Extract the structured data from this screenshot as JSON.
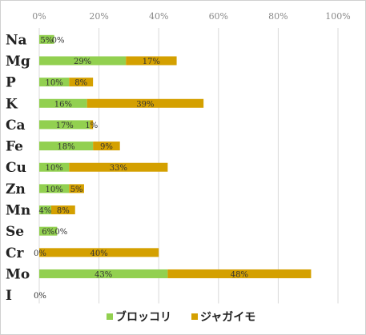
{
  "chart_data": {
    "type": "bar",
    "orientation": "horizontal",
    "stacked": true,
    "categories": [
      "Na",
      "Mg",
      "P",
      "K",
      "Ca",
      "Fe",
      "Cu",
      "Zn",
      "Mn",
      "Se",
      "Cr",
      "Mo",
      "I"
    ],
    "series": [
      {
        "name": "ブロッコリ",
        "color": "#92d050",
        "values": [
          5,
          29,
          10,
          16,
          17,
          18,
          10,
          10,
          4,
          6,
          0,
          43,
          0
        ]
      },
      {
        "name": "ジャガイモ",
        "color": "#d4a000",
        "values": [
          0,
          17,
          8,
          39,
          1,
          9,
          33,
          5,
          8,
          0,
          40,
          48,
          0
        ]
      }
    ],
    "labels": [
      [
        "5%",
        "29%",
        "10%",
        "16%",
        "17%",
        "18%",
        "10%",
        "10%",
        "4%",
        "6%",
        "0%",
        "43%",
        "0%"
      ],
      [
        "0%",
        "17%",
        "8%",
        "39%",
        "1%",
        "9%",
        "33%",
        "5%",
        "8%",
        "0%",
        "40%",
        "48%",
        ""
      ]
    ],
    "xlim": [
      0,
      100
    ],
    "xticks": [
      "0%",
      "20%",
      "40%",
      "60%",
      "80%",
      "100%"
    ],
    "grid": true,
    "legend_position": "bottom"
  }
}
